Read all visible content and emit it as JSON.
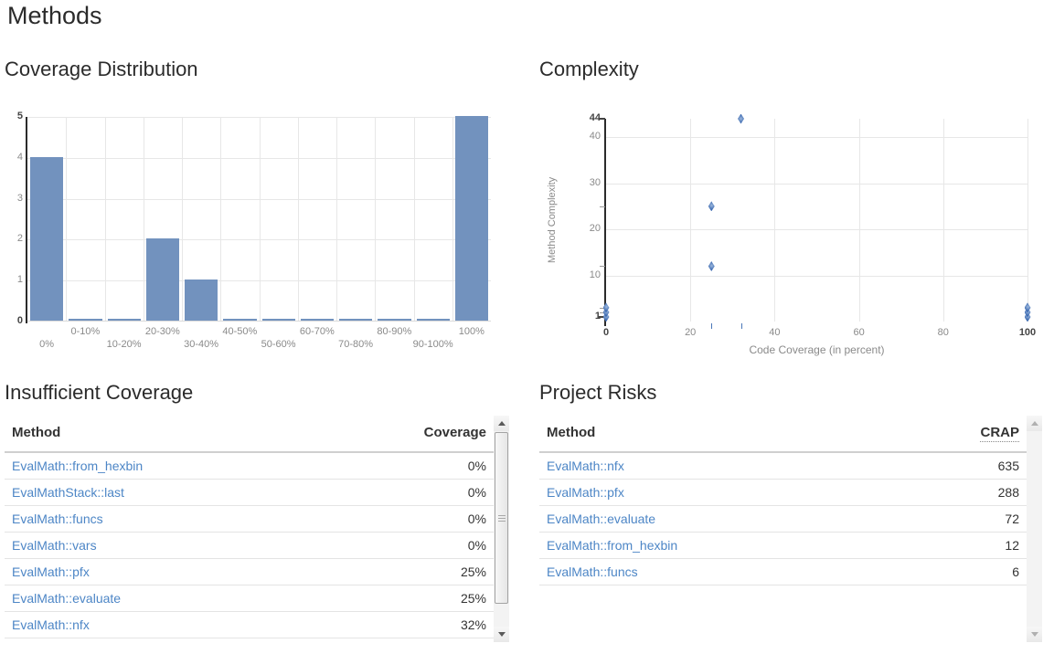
{
  "page": {
    "title": "Methods"
  },
  "sections": {
    "coverage_distribution": {
      "heading": "Coverage Distribution"
    },
    "complexity": {
      "heading": "Complexity"
    },
    "insufficient_coverage": {
      "heading": "Insufficient Coverage",
      "columns": [
        "Method",
        "Coverage"
      ],
      "rows": [
        {
          "method": "EvalMath::from_hexbin",
          "value": "0%"
        },
        {
          "method": "EvalMathStack::last",
          "value": "0%"
        },
        {
          "method": "EvalMath::funcs",
          "value": "0%"
        },
        {
          "method": "EvalMath::vars",
          "value": "0%"
        },
        {
          "method": "EvalMath::pfx",
          "value": "25%"
        },
        {
          "method": "EvalMath::evaluate",
          "value": "25%"
        },
        {
          "method": "EvalMath::nfx",
          "value": "32%"
        }
      ]
    },
    "project_risks": {
      "heading": "Project Risks",
      "columns": [
        "Method",
        "CRAP"
      ],
      "rows": [
        {
          "method": "EvalMath::nfx",
          "value": "635"
        },
        {
          "method": "EvalMath::pfx",
          "value": "288"
        },
        {
          "method": "EvalMath::evaluate",
          "value": "72"
        },
        {
          "method": "EvalMath::from_hexbin",
          "value": "12"
        },
        {
          "method": "EvalMath::funcs",
          "value": "6"
        }
      ]
    }
  },
  "colors": {
    "bar_fill": "#7292be",
    "marker_fill": "#3f6cb2",
    "link": "#4d86c6",
    "grid": "#e7e7e7",
    "axis": "#2b2b2b",
    "tick": "#8a8a8a",
    "tick_bold": "#444444"
  },
  "chart_data": [
    {
      "type": "bar",
      "title": "Coverage Distribution",
      "categories": [
        "0%",
        "0-10%",
        "10-20%",
        "20-30%",
        "30-40%",
        "40-50%",
        "50-60%",
        "60-70%",
        "70-80%",
        "80-90%",
        "90-100%",
        "100%"
      ],
      "values": [
        4,
        0,
        0,
        2,
        1,
        0,
        0,
        0,
        0,
        0,
        0,
        5
      ],
      "xlabel": "",
      "ylabel": "",
      "ylim": [
        0,
        5
      ],
      "yticks": [
        0,
        1,
        2,
        3,
        4,
        5
      ],
      "bold_yticks": [
        0,
        5
      ],
      "grid": true,
      "legend": "none"
    },
    {
      "type": "scatter",
      "title": "Complexity",
      "xlabel": "Code Coverage (in percent)",
      "ylabel": "Method Complexity",
      "xlim": [
        0,
        100
      ],
      "ylim": [
        0,
        44
      ],
      "xticks": [
        0,
        20,
        40,
        60,
        80,
        100
      ],
      "yticks": [
        1,
        10,
        20,
        30,
        40,
        44
      ],
      "bold_xticks": [
        0,
        100
      ],
      "bold_yticks": [
        1,
        44
      ],
      "points": [
        [
          0,
          1
        ],
        [
          0,
          2
        ],
        [
          0,
          3
        ],
        [
          25,
          12
        ],
        [
          25,
          25
        ],
        [
          32,
          44
        ],
        [
          100,
          1
        ],
        [
          100,
          2
        ],
        [
          100,
          3
        ]
      ],
      "x_rug": [
        25,
        32
      ],
      "y_rug": [
        2,
        3,
        12,
        25
      ],
      "grid": true,
      "legend": "none"
    }
  ]
}
